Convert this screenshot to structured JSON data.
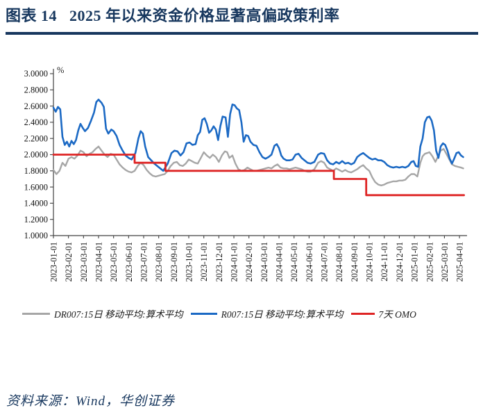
{
  "header": {
    "figure_label": "图表 14",
    "figure_title": "2025 年以来资金价格显著高偏政策利率"
  },
  "footer": {
    "source": "资料来源：Wind，华创证券"
  },
  "colors": {
    "title_navy": "#17375E",
    "axis": "#404040",
    "dr007_gray": "#A6A6A6",
    "r007_blue": "#1B69C4",
    "omo_red": "#DE2424"
  },
  "chart_data": {
    "type": "line",
    "title": "2025 年以来资金价格显著高偏政策利率",
    "unit_label": "%",
    "xlabel": "",
    "ylabel": "",
    "ylim": [
      1.0,
      3.0
    ],
    "ytick_step": 0.2,
    "grid": false,
    "legend_position": "bottom",
    "x_unit": "months since 2023-01-01",
    "y_ticks": [
      "3.0000",
      "2.8000",
      "2.6000",
      "2.4000",
      "2.2000",
      "2.0000",
      "1.8000",
      "1.6000",
      "1.4000",
      "1.2000",
      "1.0000"
    ],
    "x_ticks": [
      "2023-01-01",
      "2023-02-01",
      "2023-03-01",
      "2023-04-01",
      "2023-05-01",
      "2023-06-01",
      "2023-07-01",
      "2023-08-01",
      "2023-09-01",
      "2023-10-01",
      "2023-11-01",
      "2023-12-01",
      "2024-01-01",
      "2024-02-01",
      "2024-03-01",
      "2024-04-01",
      "2024-05-01",
      "2024-06-01",
      "2024-07-01",
      "2024-08-01",
      "2024-09-01",
      "2024-10-01",
      "2024-11-01",
      "2024-12-01",
      "2025-01-01",
      "2025-02-01",
      "2025-03-01",
      "2025-04-01"
    ],
    "series": [
      {
        "name": "DR007:15日 移动平均:算术平均",
        "color": "#A6A6A6",
        "width": 2.4,
        "points": [
          [
            0,
            1.81
          ],
          [
            0.2,
            1.76
          ],
          [
            0.4,
            1.8
          ],
          [
            0.6,
            1.9
          ],
          [
            0.8,
            1.86
          ],
          [
            1,
            1.95
          ],
          [
            1.2,
            1.97
          ],
          [
            1.4,
            1.95
          ],
          [
            1.6,
            1.99
          ],
          [
            1.8,
            2.05
          ],
          [
            2,
            2.03
          ],
          [
            2.2,
            1.98
          ],
          [
            2.4,
            2.01
          ],
          [
            2.6,
            2.03
          ],
          [
            2.8,
            2.07
          ],
          [
            3,
            2.1
          ],
          [
            3.2,
            2.05
          ],
          [
            3.4,
            2
          ],
          [
            3.6,
            1.97
          ],
          [
            3.8,
            2.01
          ],
          [
            4,
            2
          ],
          [
            4.2,
            1.94
          ],
          [
            4.4,
            1.88
          ],
          [
            4.6,
            1.84
          ],
          [
            4.8,
            1.81
          ],
          [
            5,
            1.79
          ],
          [
            5.2,
            1.78
          ],
          [
            5.4,
            1.8
          ],
          [
            5.6,
            1.86
          ],
          [
            5.8,
            1.9
          ],
          [
            6,
            1.87
          ],
          [
            6.2,
            1.81
          ],
          [
            6.4,
            1.77
          ],
          [
            6.6,
            1.74
          ],
          [
            6.8,
            1.73
          ],
          [
            7,
            1.74
          ],
          [
            7.2,
            1.75
          ],
          [
            7.4,
            1.76
          ],
          [
            7.6,
            1.8
          ],
          [
            7.8,
            1.86
          ],
          [
            8,
            1.9
          ],
          [
            8.2,
            1.91
          ],
          [
            8.4,
            1.87
          ],
          [
            8.6,
            1.86
          ],
          [
            8.8,
            1.89
          ],
          [
            9,
            1.94
          ],
          [
            9.2,
            1.92
          ],
          [
            9.4,
            1.9
          ],
          [
            9.6,
            1.89
          ],
          [
            9.8,
            1.96
          ],
          [
            10,
            2.03
          ],
          [
            10.2,
            1.99
          ],
          [
            10.4,
            1.96
          ],
          [
            10.6,
            2
          ],
          [
            10.8,
            1.97
          ],
          [
            11,
            1.91
          ],
          [
            11.2,
            1.99
          ],
          [
            11.4,
            2.04
          ],
          [
            11.55,
            2.03
          ],
          [
            11.7,
            1.96
          ],
          [
            11.9,
            1.99
          ],
          [
            12.1,
            1.89
          ],
          [
            12.3,
            1.82
          ],
          [
            12.5,
            1.8
          ],
          [
            12.7,
            1.81
          ],
          [
            12.9,
            1.84
          ],
          [
            13.1,
            1.82
          ],
          [
            13.3,
            1.8
          ],
          [
            13.5,
            1.8
          ],
          [
            13.7,
            1.81
          ],
          [
            13.9,
            1.82
          ],
          [
            14.1,
            1.83
          ],
          [
            14.3,
            1.84
          ],
          [
            14.5,
            1.83
          ],
          [
            14.7,
            1.86
          ],
          [
            14.9,
            1.88
          ],
          [
            15.1,
            1.84
          ],
          [
            15.3,
            1.83
          ],
          [
            15.5,
            1.83
          ],
          [
            15.7,
            1.82
          ],
          [
            15.9,
            1.83
          ],
          [
            16.1,
            1.84
          ],
          [
            16.3,
            1.83
          ],
          [
            16.5,
            1.82
          ],
          [
            16.7,
            1.8
          ],
          [
            16.9,
            1.79
          ],
          [
            17.1,
            1.79
          ],
          [
            17.35,
            1.82
          ],
          [
            17.6,
            1.9
          ],
          [
            17.8,
            1.92
          ],
          [
            18,
            1.9
          ],
          [
            18.2,
            1.84
          ],
          [
            18.4,
            1.82
          ],
          [
            18.6,
            1.8
          ],
          [
            18.8,
            1.83
          ],
          [
            19,
            1.81
          ],
          [
            19.2,
            1.79
          ],
          [
            19.4,
            1.81
          ],
          [
            19.6,
            1.79
          ],
          [
            19.8,
            1.78
          ],
          [
            20,
            1.8
          ],
          [
            20.2,
            1.82
          ],
          [
            20.4,
            1.85
          ],
          [
            20.6,
            1.87
          ],
          [
            20.8,
            1.83
          ],
          [
            21,
            1.8
          ],
          [
            21.2,
            1.72
          ],
          [
            21.4,
            1.66
          ],
          [
            21.6,
            1.63
          ],
          [
            21.8,
            1.62
          ],
          [
            22,
            1.63
          ],
          [
            22.2,
            1.65
          ],
          [
            22.4,
            1.66
          ],
          [
            22.6,
            1.67
          ],
          [
            22.8,
            1.67
          ],
          [
            23,
            1.68
          ],
          [
            23.2,
            1.68
          ],
          [
            23.4,
            1.69
          ],
          [
            23.6,
            1.73
          ],
          [
            23.8,
            1.76
          ],
          [
            24,
            1.76
          ],
          [
            24.2,
            1.73
          ],
          [
            24.4,
            1.9
          ],
          [
            24.55,
            1.98
          ],
          [
            24.7,
            2.01
          ],
          [
            24.85,
            2.02
          ],
          [
            25,
            2.03
          ],
          [
            25.2,
            1.98
          ],
          [
            25.4,
            1.91
          ],
          [
            25.6,
            1.99
          ],
          [
            25.75,
            2.05
          ],
          [
            25.95,
            2.07
          ],
          [
            26.1,
            2.02
          ],
          [
            26.3,
            1.95
          ],
          [
            26.5,
            1.88
          ],
          [
            26.7,
            1.86
          ],
          [
            26.9,
            1.85
          ],
          [
            27.1,
            1.84
          ],
          [
            27.25,
            1.83
          ]
        ]
      },
      {
        "name": "R007:15日 移动平均:算术平均",
        "color": "#1B69C4",
        "width": 2.6,
        "points": [
          [
            0,
            2.58
          ],
          [
            0.15,
            2.53
          ],
          [
            0.3,
            2.59
          ],
          [
            0.45,
            2.56
          ],
          [
            0.6,
            2.22
          ],
          [
            0.75,
            2.12
          ],
          [
            0.9,
            2.16
          ],
          [
            1.05,
            2.1
          ],
          [
            1.2,
            2.17
          ],
          [
            1.35,
            2.13
          ],
          [
            1.5,
            2.18
          ],
          [
            1.65,
            2.3
          ],
          [
            1.8,
            2.38
          ],
          [
            1.95,
            2.33
          ],
          [
            2.1,
            2.29
          ],
          [
            2.3,
            2.33
          ],
          [
            2.5,
            2.42
          ],
          [
            2.7,
            2.52
          ],
          [
            2.85,
            2.65
          ],
          [
            3,
            2.68
          ],
          [
            3.2,
            2.64
          ],
          [
            3.35,
            2.59
          ],
          [
            3.5,
            2.32
          ],
          [
            3.65,
            2.26
          ],
          [
            3.85,
            2.31
          ],
          [
            4,
            2.29
          ],
          [
            4.2,
            2.23
          ],
          [
            4.4,
            2.12
          ],
          [
            4.6,
            2.05
          ],
          [
            4.8,
            1.99
          ],
          [
            5,
            1.96
          ],
          [
            5.2,
            1.94
          ],
          [
            5.45,
            2.02
          ],
          [
            5.65,
            2.2
          ],
          [
            5.8,
            2.29
          ],
          [
            5.95,
            2.26
          ],
          [
            6.1,
            2.1
          ],
          [
            6.3,
            1.97
          ],
          [
            6.5,
            1.93
          ],
          [
            6.7,
            1.89
          ],
          [
            6.9,
            1.86
          ],
          [
            7.1,
            1.83
          ],
          [
            7.3,
            1.8
          ],
          [
            7.6,
            1.89
          ],
          [
            7.85,
            2.02
          ],
          [
            8.05,
            2.05
          ],
          [
            8.25,
            2.04
          ],
          [
            8.45,
            1.99
          ],
          [
            8.65,
            2.03
          ],
          [
            8.85,
            2.14
          ],
          [
            9.05,
            2.15
          ],
          [
            9.25,
            2.12
          ],
          [
            9.45,
            2.13
          ],
          [
            9.6,
            2.24
          ],
          [
            9.75,
            2.28
          ],
          [
            9.9,
            2.43
          ],
          [
            10.05,
            2.45
          ],
          [
            10.2,
            2.38
          ],
          [
            10.35,
            2.27
          ],
          [
            10.5,
            2.3
          ],
          [
            10.65,
            2.35
          ],
          [
            10.8,
            2.31
          ],
          [
            10.95,
            2.18
          ],
          [
            11.1,
            2.35
          ],
          [
            11.25,
            2.47
          ],
          [
            11.45,
            2.46
          ],
          [
            11.6,
            2.22
          ],
          [
            11.75,
            2.5
          ],
          [
            11.9,
            2.62
          ],
          [
            12.05,
            2.61
          ],
          [
            12.2,
            2.57
          ],
          [
            12.35,
            2.55
          ],
          [
            12.5,
            2.4
          ],
          [
            12.65,
            2.16
          ],
          [
            12.8,
            2.24
          ],
          [
            12.95,
            2.23
          ],
          [
            13.1,
            2.16
          ],
          [
            13.3,
            2.12
          ],
          [
            13.5,
            2.11
          ],
          [
            13.7,
            2.03
          ],
          [
            13.9,
            1.97
          ],
          [
            14.1,
            1.95
          ],
          [
            14.3,
            1.97
          ],
          [
            14.5,
            2
          ],
          [
            14.7,
            2.11
          ],
          [
            14.85,
            2.13
          ],
          [
            15,
            2.08
          ],
          [
            15.15,
            1.99
          ],
          [
            15.3,
            1.95
          ],
          [
            15.5,
            1.93
          ],
          [
            15.7,
            1.93
          ],
          [
            15.9,
            1.94
          ],
          [
            16.1,
            2
          ],
          [
            16.3,
            2.01
          ],
          [
            16.5,
            1.96
          ],
          [
            16.7,
            1.93
          ],
          [
            16.9,
            1.9
          ],
          [
            17.1,
            1.89
          ],
          [
            17.35,
            1.91
          ],
          [
            17.6,
            2
          ],
          [
            17.8,
            2.02
          ],
          [
            18,
            2.01
          ],
          [
            18.2,
            1.93
          ],
          [
            18.4,
            1.89
          ],
          [
            18.6,
            1.88
          ],
          [
            18.8,
            1.91
          ],
          [
            19,
            1.89
          ],
          [
            19.2,
            1.92
          ],
          [
            19.4,
            1.89
          ],
          [
            19.6,
            1.9
          ],
          [
            19.8,
            1.88
          ],
          [
            20,
            1.9
          ],
          [
            20.2,
            1.97
          ],
          [
            20.4,
            2
          ],
          [
            20.6,
            2.02
          ],
          [
            20.8,
            1.99
          ],
          [
            21,
            1.96
          ],
          [
            21.2,
            1.94
          ],
          [
            21.4,
            1.95
          ],
          [
            21.6,
            1.93
          ],
          [
            21.8,
            1.93
          ],
          [
            22,
            1.91
          ],
          [
            22.2,
            1.87
          ],
          [
            22.4,
            1.85
          ],
          [
            22.6,
            1.84
          ],
          [
            22.8,
            1.85
          ],
          [
            23,
            1.84
          ],
          [
            23.2,
            1.85
          ],
          [
            23.4,
            1.84
          ],
          [
            23.6,
            1.86
          ],
          [
            23.8,
            1.91
          ],
          [
            23.95,
            1.92
          ],
          [
            24.1,
            1.86
          ],
          [
            24.25,
            1.85
          ],
          [
            24.4,
            2.1
          ],
          [
            24.55,
            2.2
          ],
          [
            24.7,
            2.4
          ],
          [
            24.85,
            2.46
          ],
          [
            25,
            2.47
          ],
          [
            25.15,
            2.42
          ],
          [
            25.3,
            2.3
          ],
          [
            25.45,
            2.05
          ],
          [
            25.6,
            1.96
          ],
          [
            25.75,
            2.1
          ],
          [
            25.9,
            2.14
          ],
          [
            26.05,
            2.12
          ],
          [
            26.2,
            2.05
          ],
          [
            26.35,
            1.95
          ],
          [
            26.5,
            1.89
          ],
          [
            26.65,
            1.95
          ],
          [
            26.8,
            2.02
          ],
          [
            26.95,
            2.03
          ],
          [
            27.1,
            1.99
          ],
          [
            27.25,
            1.97
          ]
        ]
      },
      {
        "name": "7天 OMO",
        "color": "#DE2424",
        "width": 2.8,
        "points": [
          [
            0,
            2.0
          ],
          [
            5.4,
            2.0
          ],
          [
            5.4,
            1.9
          ],
          [
            7.45,
            1.9
          ],
          [
            7.45,
            1.8
          ],
          [
            18.65,
            1.8
          ],
          [
            18.65,
            1.7
          ],
          [
            20.8,
            1.7
          ],
          [
            20.8,
            1.5
          ],
          [
            27.3,
            1.5
          ]
        ]
      }
    ]
  }
}
